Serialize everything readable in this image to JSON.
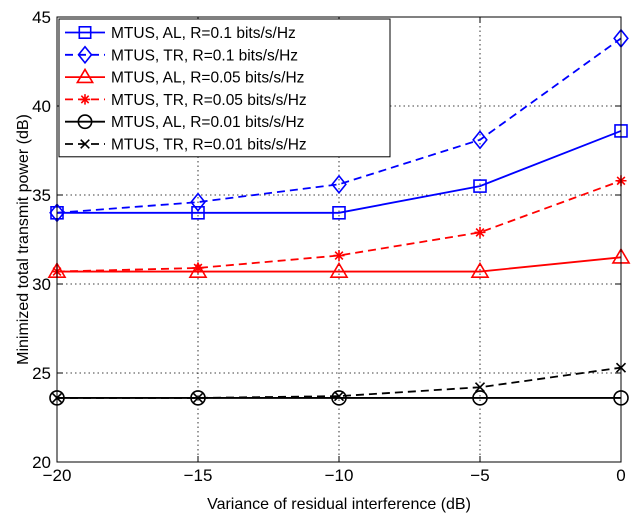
{
  "chart_data": {
    "type": "line",
    "title": "",
    "xlabel": "Variance of residual interference (dB)",
    "ylabel": "Minimized total transmit power (dB)",
    "xlim": [
      -20,
      0
    ],
    "ylim": [
      20,
      45
    ],
    "x": [
      -20,
      -15,
      -10,
      -5,
      0
    ],
    "xticks": [
      -20,
      -15,
      -10,
      -5,
      0
    ],
    "xtick_labels": [
      "−20",
      "−15",
      "−10",
      "−5",
      "0"
    ],
    "yticks": [
      20,
      25,
      30,
      35,
      40,
      45
    ],
    "ytick_labels": [
      "20",
      "25",
      "30",
      "35",
      "40",
      "45"
    ],
    "grid": true,
    "legend_position": "top-left",
    "series": [
      {
        "name": "MTUS, AL, R=0.1 bits/s/Hz",
        "values": [
          34.0,
          34.0,
          34.0,
          35.5,
          38.6
        ],
        "color": "#0000ff",
        "dash": "solid",
        "marker": "square"
      },
      {
        "name": "MTUS, TR, R=0.1 bits/s/Hz",
        "values": [
          34.0,
          34.6,
          35.6,
          38.1,
          43.8
        ],
        "color": "#0000ff",
        "dash": "dashed",
        "marker": "diamond"
      },
      {
        "name": "MTUS, AL, R=0.05 bits/s/Hz",
        "values": [
          30.7,
          30.7,
          30.7,
          30.7,
          31.5
        ],
        "color": "#ff0000",
        "dash": "solid",
        "marker": "triangle"
      },
      {
        "name": "MTUS, TR, R=0.05 bits/s/Hz",
        "values": [
          30.7,
          30.9,
          31.6,
          32.9,
          35.8
        ],
        "color": "#ff0000",
        "dash": "dashed",
        "marker": "asterisk"
      },
      {
        "name": "MTUS, AL, R=0.01 bits/s/Hz",
        "values": [
          23.6,
          23.6,
          23.6,
          23.6,
          23.6
        ],
        "color": "#000000",
        "dash": "solid",
        "marker": "circle"
      },
      {
        "name": "MTUS, TR, R=0.01 bits/s/Hz",
        "values": [
          23.6,
          23.6,
          23.7,
          24.2,
          25.3
        ],
        "color": "#000000",
        "dash": "dashed",
        "marker": "x"
      }
    ]
  }
}
